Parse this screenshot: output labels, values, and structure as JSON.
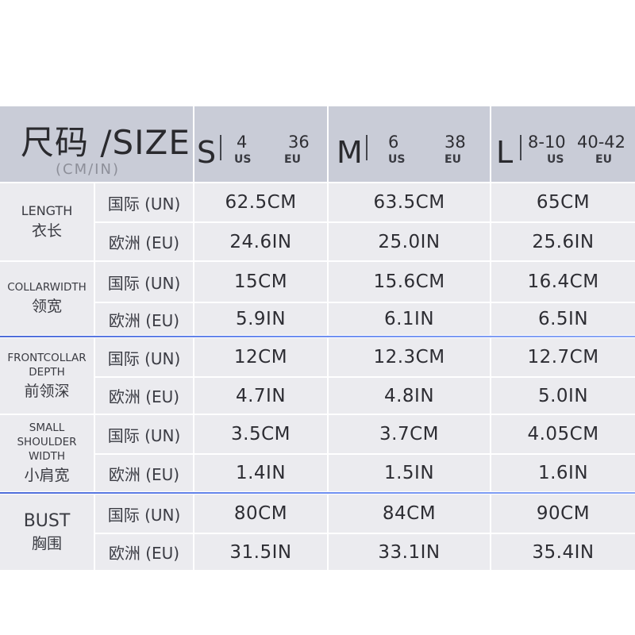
{
  "header": {
    "title": "尺码 /SIZE",
    "subtitle": "(CM/IN)",
    "sizes": [
      {
        "letter": "S",
        "us": "4",
        "eu": "36",
        "us_tag": "US",
        "eu_tag": "EU"
      },
      {
        "letter": "M",
        "us": "6",
        "eu": "38",
        "us_tag": "US",
        "eu_tag": "EU"
      },
      {
        "letter": "L",
        "us": "8-10",
        "eu": "40-42",
        "us_tag": "US",
        "eu_tag": "EU"
      }
    ]
  },
  "units": {
    "un": "国际 (UN)",
    "eu": "欧洲 (EU)"
  },
  "measurements": [
    {
      "en": "LENGTH",
      "zh": "衣长",
      "un": [
        "62.5CM",
        "63.5CM",
        "65CM"
      ],
      "eu": [
        "24.6IN",
        "25.0IN",
        "25.6IN"
      ]
    },
    {
      "en": "COLLARWIDTH",
      "zh": "领宽",
      "un": [
        "15CM",
        "15.6CM",
        "16.4CM"
      ],
      "eu": [
        "5.9IN",
        "6.1IN",
        "6.5IN"
      ]
    },
    {
      "en": "FRONTCOLLAR DEPTH",
      "en_line1": "FRONTCOLLAR",
      "en_line2": "DEPTH",
      "zh": "前领深",
      "un": [
        "12CM",
        "12.3CM",
        "12.7CM"
      ],
      "eu": [
        "4.7IN",
        "4.8IN",
        "5.0IN"
      ]
    },
    {
      "en": "SMALL SHOULDER WIDTH",
      "en_line1": "SMALL",
      "en_line2": "SHOULDER",
      "en_line3": "WIDTH",
      "zh": "小肩宽",
      "un": [
        "3.5CM",
        "3.7CM",
        "4.05CM"
      ],
      "eu": [
        "1.4IN",
        "1.5IN",
        "1.6IN"
      ]
    },
    {
      "en": "BUST",
      "zh": "胸围",
      "un": [
        "80CM",
        "84CM",
        "90CM"
      ],
      "eu": [
        "31.5IN",
        "33.1IN",
        "35.4IN"
      ]
    }
  ],
  "colors": {
    "header_bg": "#c9ccd7",
    "cell_bg": "#ebebef",
    "accent_rule": "#5b7be6"
  }
}
